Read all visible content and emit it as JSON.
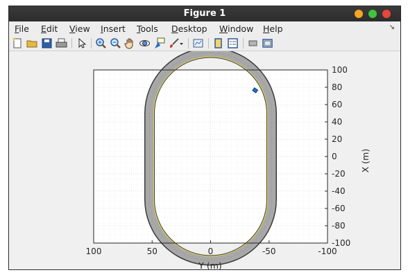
{
  "window": {
    "title": "Figure 1"
  },
  "menu": {
    "items": [
      {
        "label_u": "F",
        "label_rest": "ile"
      },
      {
        "label_u": "E",
        "label_rest": "dit"
      },
      {
        "label_u": "V",
        "label_rest": "iew"
      },
      {
        "label_u": "I",
        "label_rest": "nsert"
      },
      {
        "label_u": "T",
        "label_rest": "ools"
      },
      {
        "label_u": "D",
        "label_rest": "esktop"
      },
      {
        "label_u": "W",
        "label_rest": "indow"
      },
      {
        "label_u": "H",
        "label_rest": "elp"
      }
    ],
    "overflow_icon": "double-arrow-icon"
  },
  "toolbar": {
    "icons": [
      "new-figure-icon",
      "open-file-icon",
      "save-icon",
      "print-icon",
      "pointer-icon",
      "zoom-in-icon",
      "zoom-out-icon",
      "pan-hand-icon",
      "rotate-3d-icon",
      "data-cursor-icon",
      "brush-icon",
      "dropdown-arrow-icon",
      "link-plot-icon",
      "colorbar-icon",
      "legend-icon",
      "hide-plot-tools-icon",
      "show-plot-tools-icon"
    ]
  },
  "axes": {
    "xlabel": "Y (m)",
    "ylabel": "X (m)",
    "xticks": [
      "100",
      "50",
      "0",
      "-50",
      "-100"
    ],
    "yticks": [
      "100",
      "80",
      "60",
      "40",
      "20",
      "0",
      "-20",
      "-40",
      "-60",
      "-80",
      "-100"
    ],
    "xlim": [
      100,
      -100
    ],
    "ylim": [
      -100,
      100
    ],
    "colors": {
      "track": "#a8a8a8",
      "track_edge": "#3a3a3a",
      "lane_line": "#e8d84a",
      "vehicle": "#1f6fd1"
    }
  }
}
